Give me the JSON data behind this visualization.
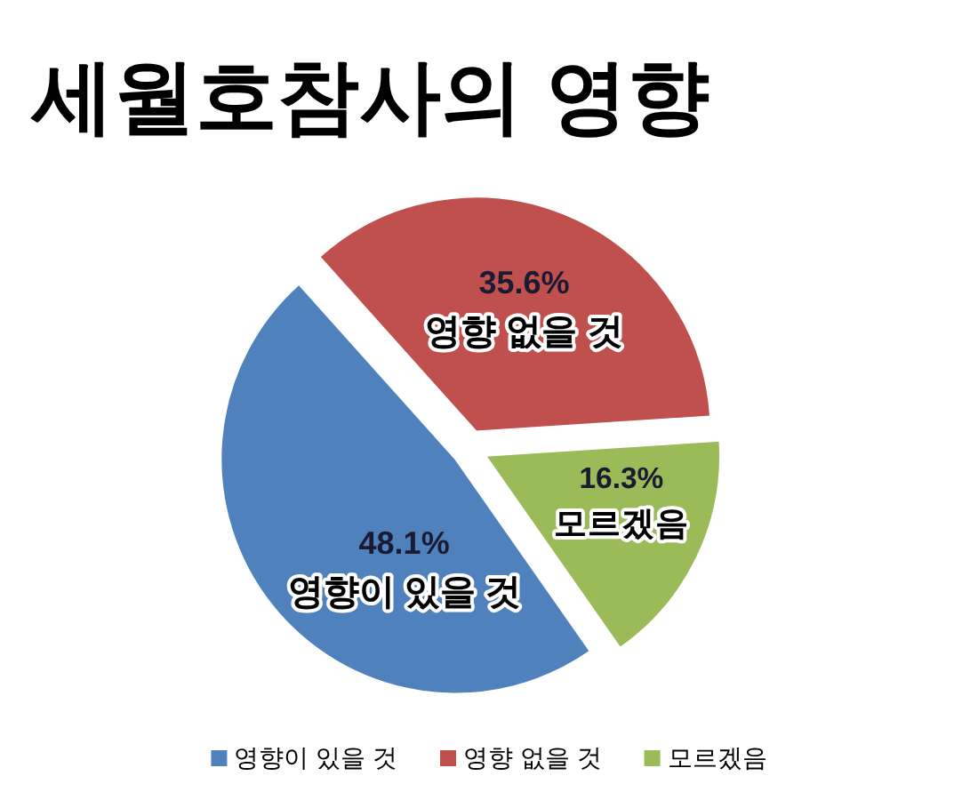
{
  "chart_data": {
    "type": "pie",
    "title": "세월호참사의 영향",
    "categories": [
      "영향이 있을 것",
      "영향 없을 것",
      "모르겠음"
    ],
    "values": [
      48.1,
      35.6,
      16.3
    ],
    "colors": [
      "#4f81bd",
      "#c0504d",
      "#9bbb59"
    ],
    "value_labels": [
      "48.1%",
      "35.6%",
      "16.3%"
    ],
    "legend": "bottom"
  }
}
